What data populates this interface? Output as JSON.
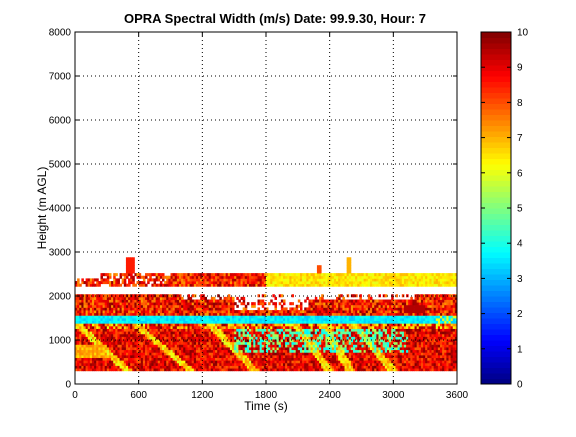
{
  "chart_data": {
    "type": "heatmap",
    "title": "OPRA Spectral Width (m/s)  Date: 99.9.30, Hour: 7",
    "xlabel": "Time (s)",
    "ylabel": "Height (m AGL)",
    "xlim": [
      0,
      3600
    ],
    "ylim": [
      0,
      8000
    ],
    "xticks": [
      0,
      600,
      1200,
      1800,
      2400,
      3000,
      3600
    ],
    "yticks": [
      0,
      1000,
      2000,
      3000,
      4000,
      5000,
      6000,
      7000,
      8000
    ],
    "grid": true,
    "colorbar": {
      "ticks": [
        0,
        1,
        2,
        3,
        4,
        5,
        6,
        7,
        8,
        9,
        10
      ],
      "range": [
        0,
        10
      ],
      "colormap": "jet"
    },
    "value_range": [
      0,
      10
    ],
    "regions": [
      {
        "label": "dense returns, mostly 7-10 m/s",
        "x": [
          0,
          3600
        ],
        "y": [
          300,
          1400
        ],
        "typical": 8.5
      },
      {
        "label": "cyan band ~3-4 m/s",
        "x": [
          0,
          3600
        ],
        "y": [
          1400,
          1580
        ],
        "typical": 3.5
      },
      {
        "label": "broken layer",
        "x": [
          0,
          3600
        ],
        "y": [
          1600,
          2050
        ],
        "typical": 8.0
      },
      {
        "label": "upper band",
        "x": [
          250,
          3600
        ],
        "y": [
          2250,
          2550
        ],
        "typical": 7.0
      }
    ]
  }
}
